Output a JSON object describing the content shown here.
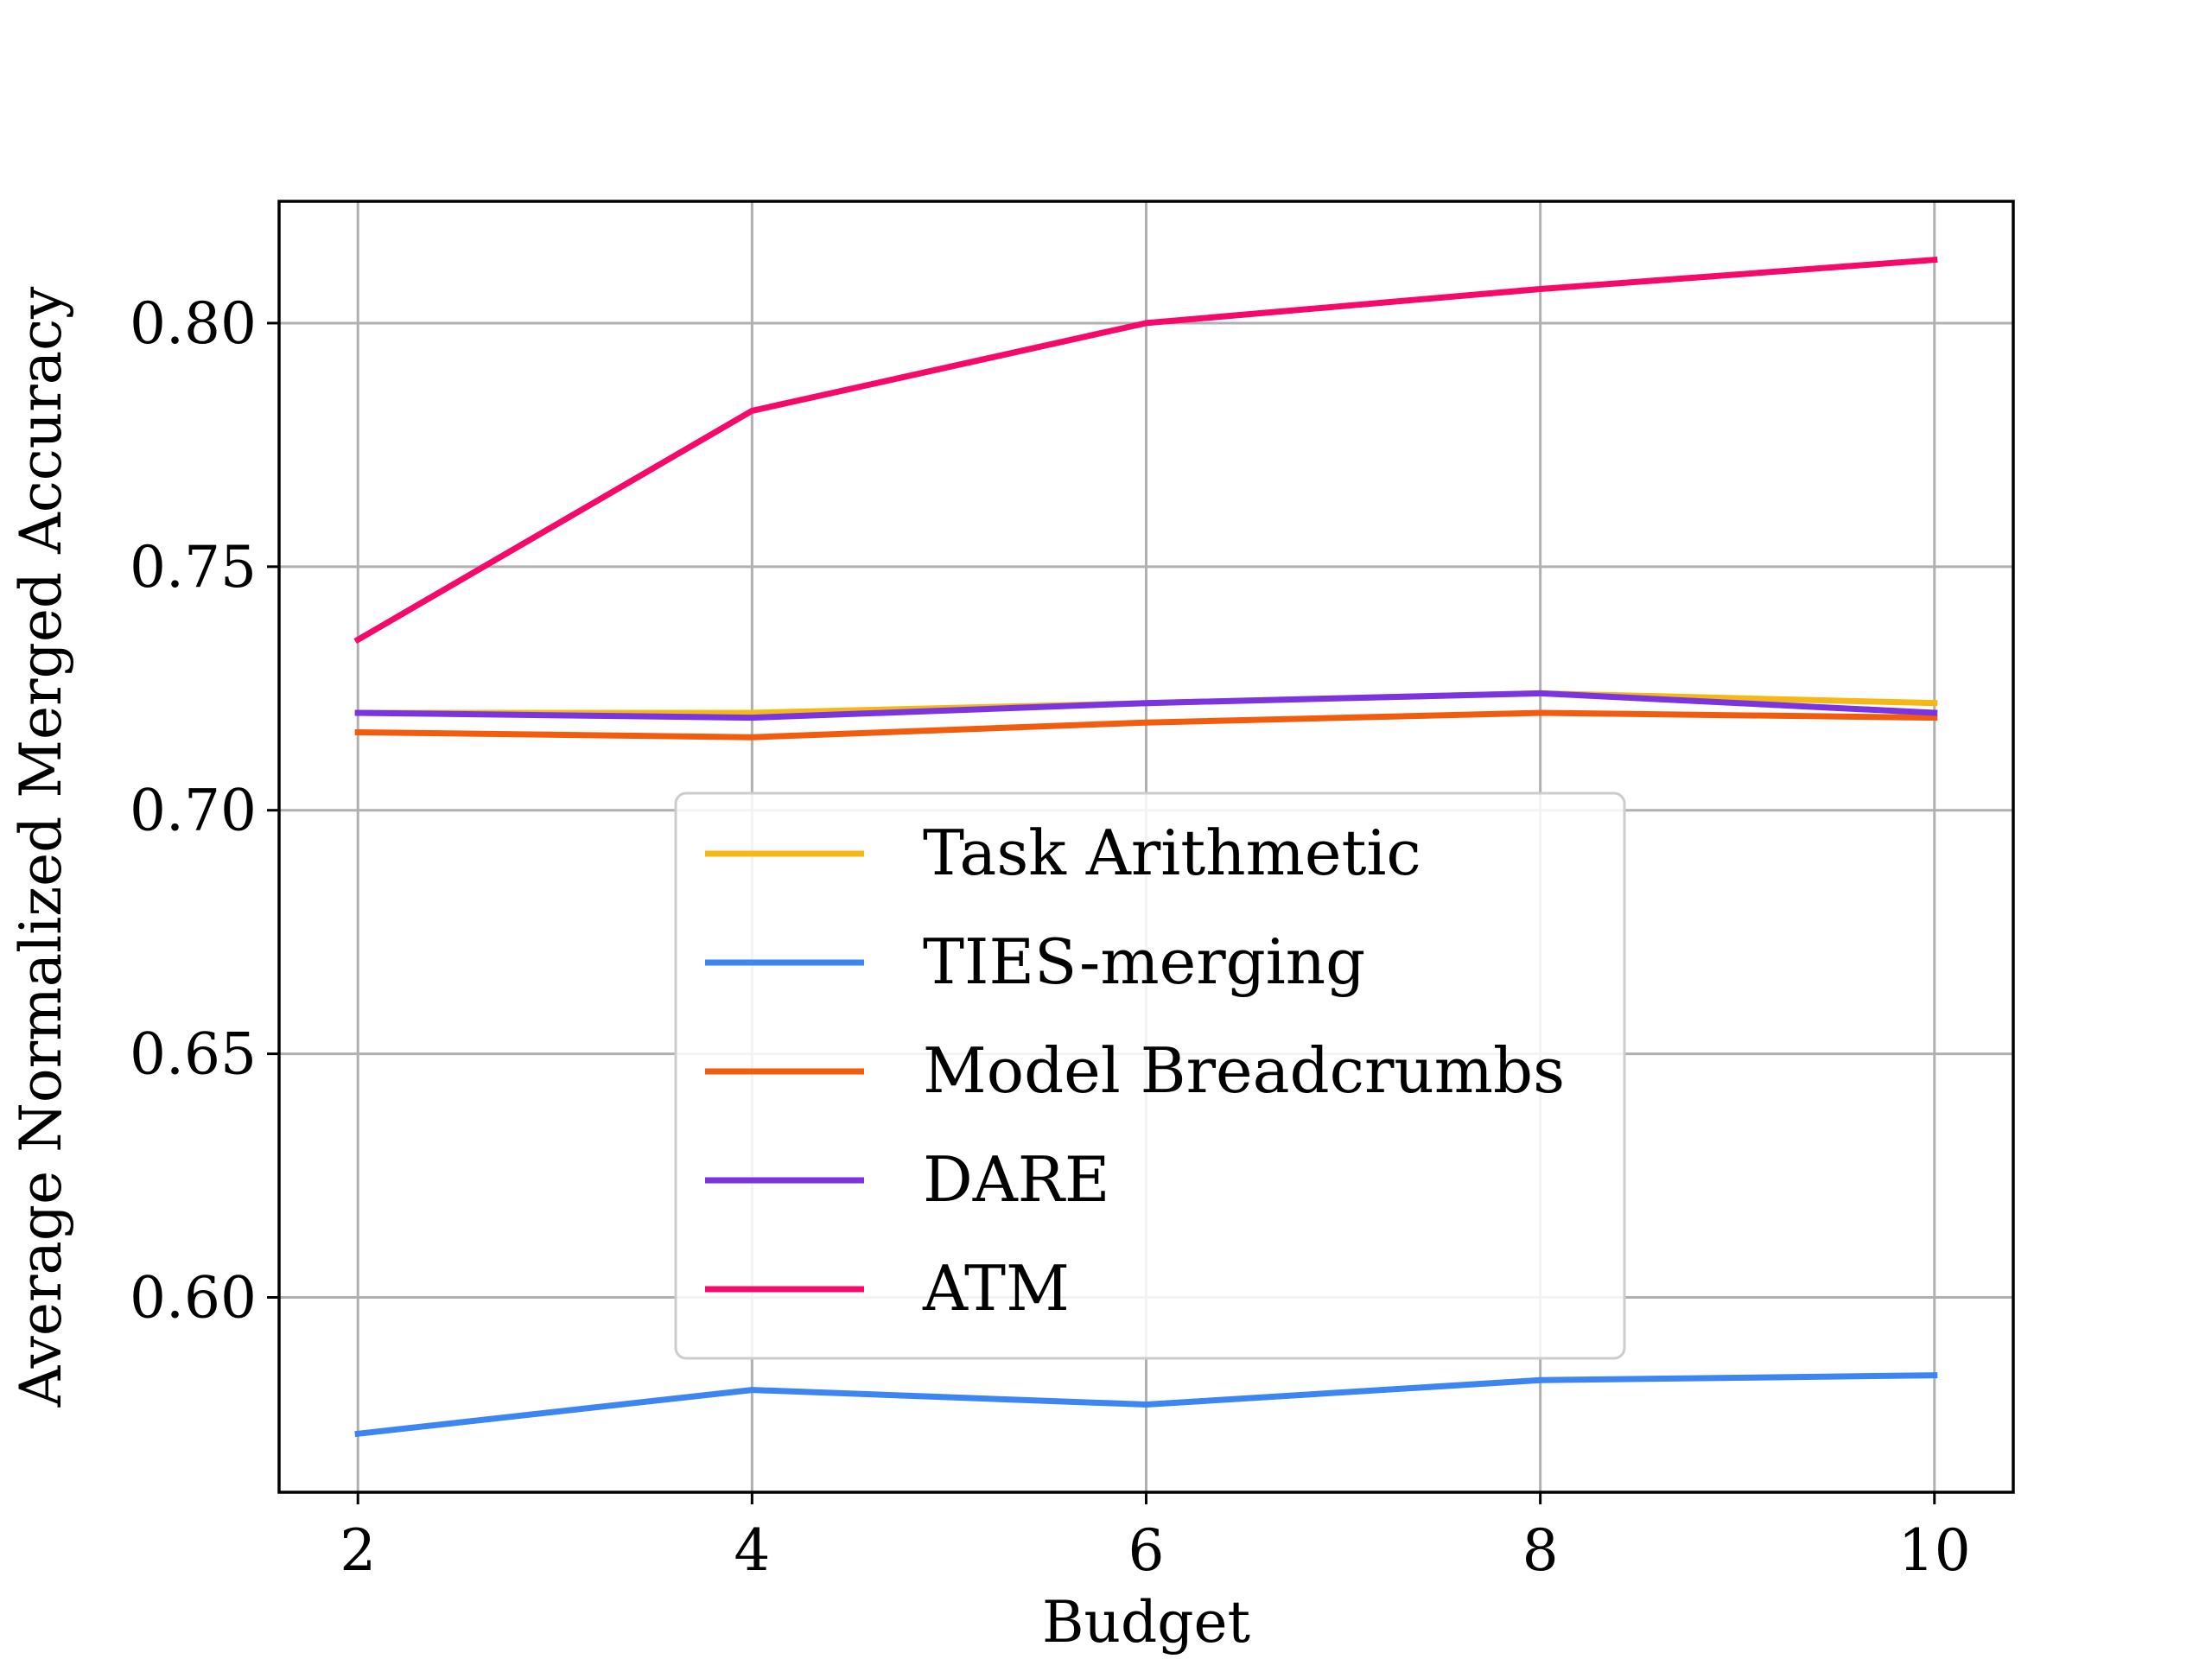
{
  "chart_data": {
    "type": "line",
    "title": "",
    "xlabel": "Budget",
    "ylabel": "Average Normalized Merged Accuracy",
    "x": [
      2,
      4,
      6,
      8,
      10
    ],
    "xlim": [
      1.6,
      10.4
    ],
    "ylim": [
      0.56,
      0.825
    ],
    "xticks": [
      2,
      4,
      6,
      8,
      10
    ],
    "xtick_labels": [
      "2",
      "4",
      "6",
      "8",
      "10"
    ],
    "yticks": [
      0.6,
      0.65,
      0.7,
      0.75,
      0.8
    ],
    "ytick_labels": [
      "0.60",
      "0.65",
      "0.70",
      "0.75",
      "0.80"
    ],
    "grid": true,
    "legend_position": "center",
    "series": [
      {
        "name": "Task Arithmetic",
        "color": "#f5b814",
        "values": [
          0.72,
          0.72,
          0.722,
          0.724,
          0.722
        ]
      },
      {
        "name": "TIES-merging",
        "color": "#3d85f0",
        "values": [
          0.572,
          0.581,
          0.578,
          0.583,
          0.584
        ]
      },
      {
        "name": "Model Breadcrumbs",
        "color": "#f25c0e",
        "values": [
          0.716,
          0.715,
          0.718,
          0.72,
          0.719
        ]
      },
      {
        "name": "DARE",
        "color": "#7b35e0",
        "values": [
          0.72,
          0.719,
          0.722,
          0.724,
          0.72
        ]
      },
      {
        "name": "ATM",
        "color": "#f50a6a",
        "values": [
          0.735,
          0.782,
          0.8,
          0.807,
          0.813
        ]
      }
    ]
  }
}
